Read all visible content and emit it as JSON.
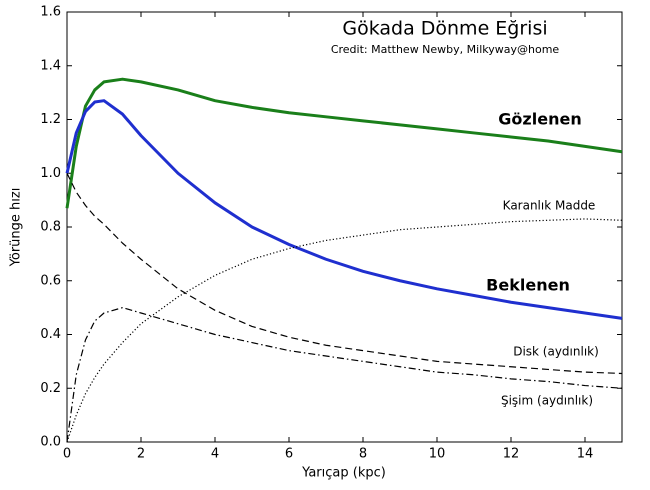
{
  "chart_data": {
    "type": "line",
    "title": "Gökada Dönme Eğrisi",
    "subtitle": "Credit:  Matthew Newby, Milkyway@home",
    "x_label": "Yarıçap (kpc)",
    "y_label": "Yörünge hızı",
    "x": [
      0,
      0.25,
      0.5,
      0.75,
      1,
      1.5,
      2,
      3,
      4,
      5,
      6,
      7,
      8,
      9,
      10,
      11,
      12,
      13,
      14,
      15
    ],
    "series": [
      {
        "name": "Gözlenen",
        "color": "#1a7f1a",
        "linestyle": "solid",
        "linewidth": 3,
        "values": [
          0.87,
          1.1,
          1.25,
          1.31,
          1.34,
          1.35,
          1.34,
          1.31,
          1.27,
          1.245,
          1.225,
          1.21,
          1.195,
          1.18,
          1.165,
          1.15,
          1.135,
          1.12,
          1.1,
          1.08
        ]
      },
      {
        "name": "Beklenen",
        "color": "#1f2fcf",
        "linestyle": "solid",
        "linewidth": 3,
        "values": [
          1.0,
          1.15,
          1.23,
          1.265,
          1.27,
          1.22,
          1.14,
          1.0,
          0.89,
          0.8,
          0.735,
          0.68,
          0.635,
          0.6,
          0.57,
          0.545,
          0.52,
          0.5,
          0.48,
          0.46
        ]
      },
      {
        "name": "Karanlık Madde",
        "color": "#000000",
        "linestyle": "dotted",
        "linewidth": 1.2,
        "values": [
          0,
          0.1,
          0.18,
          0.24,
          0.29,
          0.37,
          0.44,
          0.54,
          0.62,
          0.68,
          0.72,
          0.75,
          0.77,
          0.79,
          0.8,
          0.81,
          0.82,
          0.825,
          0.83,
          0.825
        ]
      },
      {
        "name": "Disk (aydınlık)",
        "color": "#000000",
        "linestyle": "dashed",
        "linewidth": 1.2,
        "values": [
          1.0,
          0.93,
          0.88,
          0.84,
          0.81,
          0.74,
          0.68,
          0.57,
          0.49,
          0.43,
          0.39,
          0.36,
          0.34,
          0.32,
          0.3,
          0.29,
          0.28,
          0.27,
          0.26,
          0.255
        ]
      },
      {
        "name": "Şişim (aydınlık)",
        "color": "#000000",
        "linestyle": "dashdot",
        "linewidth": 1.2,
        "values": [
          0,
          0.25,
          0.38,
          0.45,
          0.48,
          0.5,
          0.48,
          0.44,
          0.4,
          0.37,
          0.34,
          0.32,
          0.3,
          0.28,
          0.26,
          0.25,
          0.235,
          0.225,
          0.21,
          0.2
        ]
      }
    ],
    "xlim": [
      0,
      15
    ],
    "ylim": [
      0,
      1.6
    ],
    "xticks": [
      0,
      2,
      4,
      6,
      8,
      10,
      12,
      14
    ],
    "yticks": [
      {
        "value": 0,
        "label": "0.0"
      },
      0.2,
      0.4,
      0.6,
      0.8,
      {
        "value": 1,
        "label": "1.0"
      },
      1.2,
      1.4,
      1.6
    ],
    "grid": false
  }
}
